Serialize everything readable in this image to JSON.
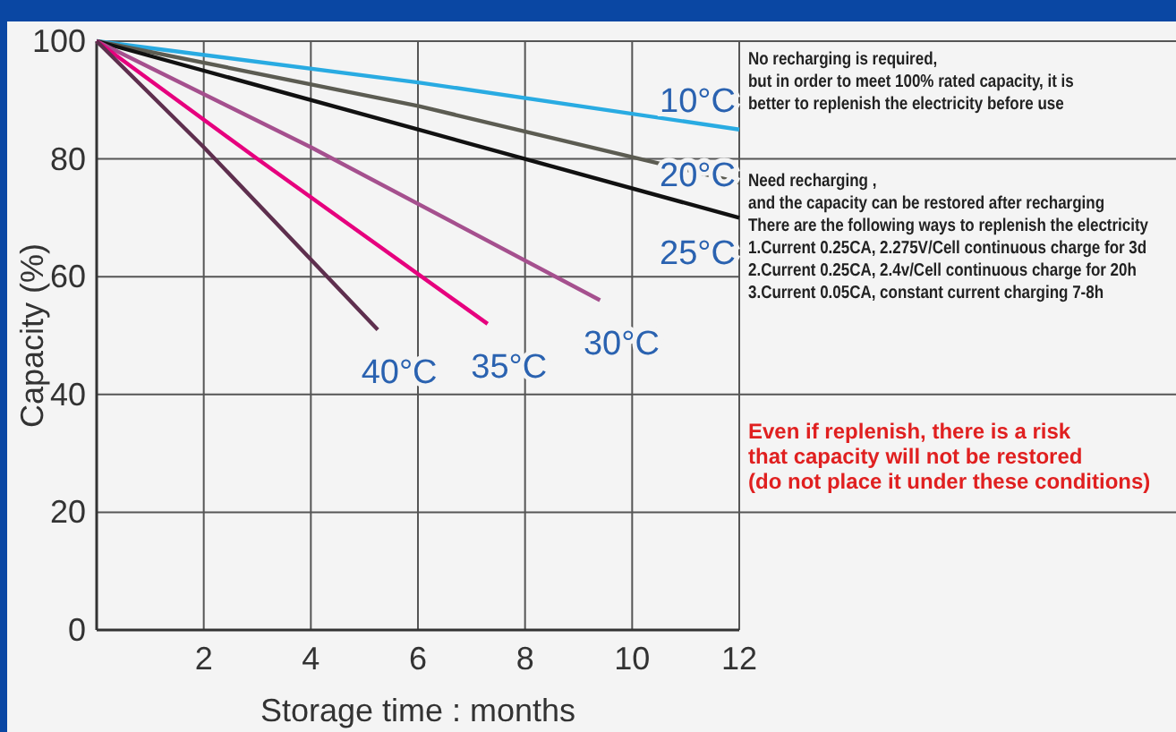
{
  "chart_data": {
    "type": "line",
    "xlabel": "Storage time : months",
    "ylabel": "Capacity (%)",
    "xlim": [
      0,
      12
    ],
    "ylim": [
      0,
      100
    ],
    "xticks": [
      2,
      4,
      6,
      8,
      10,
      12
    ],
    "yticks": [
      0,
      20,
      40,
      60,
      80,
      100
    ],
    "grid": true,
    "marker": "none",
    "line_style": "solid",
    "series": [
      {
        "name": "10°C",
        "color": "#29abe2",
        "x": [
          0,
          6,
          12
        ],
        "values": [
          100,
          93,
          85
        ]
      },
      {
        "name": "20°C",
        "color": "#5c5c52",
        "x": [
          0,
          6,
          12
        ],
        "values": [
          100,
          89,
          76
        ]
      },
      {
        "name": "25°C",
        "color": "#111111",
        "x": [
          0,
          6,
          12
        ],
        "values": [
          100,
          85,
          70
        ]
      },
      {
        "name": "30°C",
        "color": "#a5508e",
        "x": [
          0,
          4,
          9.4
        ],
        "values": [
          100,
          82,
          56
        ]
      },
      {
        "name": "35°C",
        "color": "#e6007e",
        "x": [
          0,
          3,
          7.3
        ],
        "values": [
          100,
          80,
          52
        ]
      },
      {
        "name": "40°C",
        "color": "#5e2f4e",
        "x": [
          0,
          2,
          5.25
        ],
        "values": [
          100,
          82,
          51
        ]
      }
    ],
    "annotations": [
      "No recharging is required,\nbut in order to meet 100% rated capacity, it is\nbetter to replenish the electricity before use",
      "Need recharging ,\nand the capacity can be restored after recharging\nThere are the following ways to replenish the electricity\n1.Current 0.25CA, 2.275V/Cell continuous charge for 3d\n2.Current 0.25CA, 2.4v/Cell continuous charge for 20h\n3.Current 0.05CA, constant current charging 7-8h",
      "Even if replenish, there is a risk\nthat capacity will not be restored\n(do not place it under these conditions)"
    ]
  }
}
